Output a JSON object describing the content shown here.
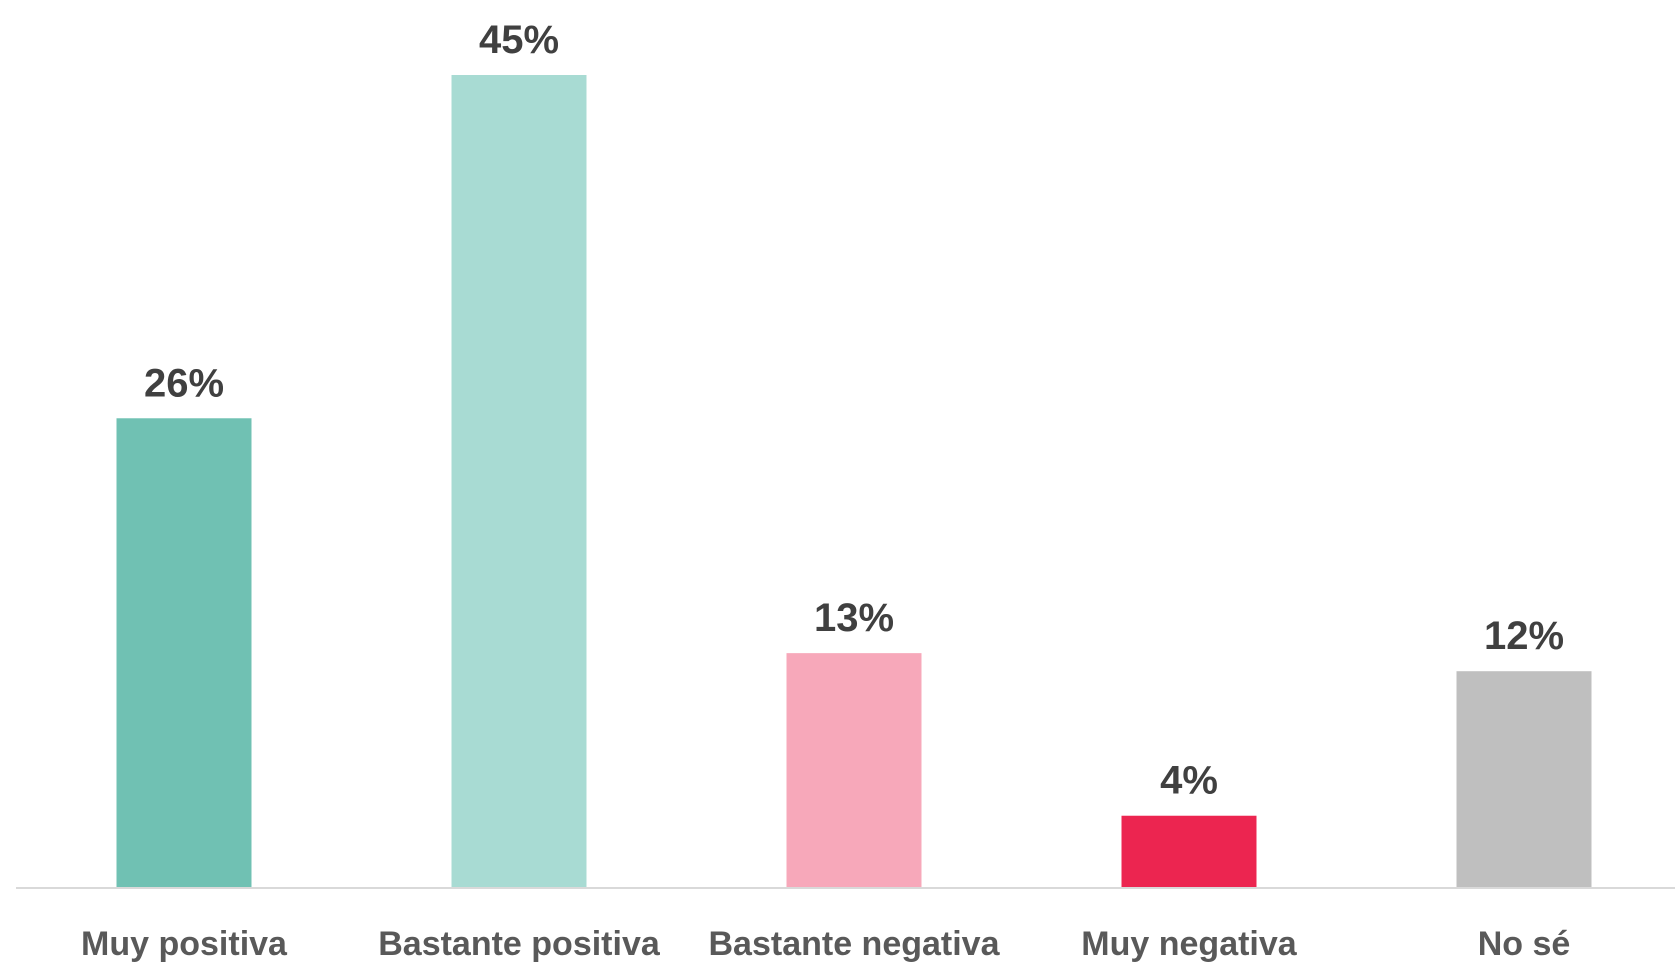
{
  "chart_data": {
    "type": "bar",
    "title": "",
    "xlabel": "",
    "ylabel": "",
    "ylim": [
      0,
      45
    ],
    "grid": false,
    "legend": "none",
    "categories": [
      "Muy positiva",
      "Bastante positiva",
      "Bastante negativa",
      "Muy negativa",
      "No sé"
    ],
    "values": [
      26,
      45,
      13,
      4,
      12
    ],
    "value_labels": [
      "26%",
      "45%",
      "13%",
      "4%",
      "12%"
    ],
    "colors": [
      "#70c1b3",
      "#a8dbd3",
      "#f7a8ba",
      "#ec2550",
      "#bfbfbf"
    ],
    "axis_color": "#d9d9d9",
    "label_color": "#404040",
    "category_label_color": "#595959"
  }
}
